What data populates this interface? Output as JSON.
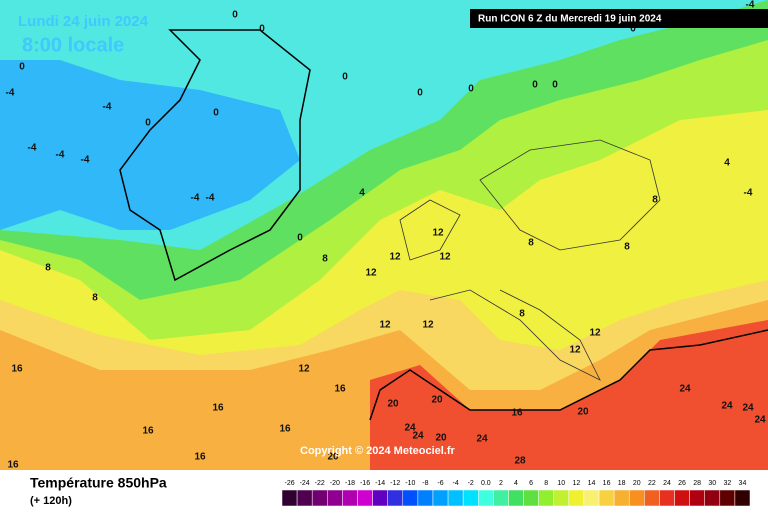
{
  "header": {
    "valid_time": "Lundi 24 juin 2024",
    "local_time": "8:00 locale",
    "run": "Run ICON 6 Z du Mercredi 19 juin 2024",
    "copyright": "Copyright © 2024 Meteociel.fr"
  },
  "footer": {
    "title": "Température 850hPa",
    "lead": "(+ 120h)"
  },
  "legend": {
    "ticks": [
      -26,
      -24,
      -22,
      -20,
      -18,
      -16,
      -14,
      -12,
      -10,
      -8,
      -6,
      -4,
      -2,
      {
        "value": 0,
        "label": "0.0"
      },
      2,
      4,
      6,
      8,
      10,
      12,
      14,
      16,
      18,
      20,
      22,
      24,
      26,
      28,
      30,
      32,
      34
    ],
    "colors": [
      "#300030",
      "#500050",
      "#700070",
      "#900090",
      "#b000b0",
      "#d000d0",
      "#6000c0",
      "#3030e0",
      "#0050ff",
      "#0080ff",
      "#00a0ff",
      "#00c0ff",
      "#00e0ff",
      "#40ffe0",
      "#40f0a0",
      "#40e060",
      "#60e040",
      "#90f030",
      "#c0f030",
      "#f0f030",
      "#f8f070",
      "#f8d040",
      "#f8b030",
      "#f89020",
      "#f06020",
      "#e83020",
      "#d01010",
      "#b00010",
      "#900010",
      "#600000",
      "#300000"
    ]
  },
  "contour_labels": [
    0,
    0,
    0,
    0,
    0,
    0,
    0,
    0,
    0,
    0,
    0,
    0,
    -4,
    -4,
    -4,
    -4,
    -4,
    -4,
    -4,
    -4,
    -4,
    4,
    4,
    8,
    8,
    8,
    8,
    8,
    8,
    8,
    12,
    12,
    12,
    12,
    12,
    12,
    12,
    12,
    12,
    16,
    16,
    16,
    16,
    16,
    16,
    16,
    16,
    20,
    20,
    20,
    20,
    20,
    24,
    24,
    24,
    24,
    24,
    24,
    24,
    28
  ]
}
